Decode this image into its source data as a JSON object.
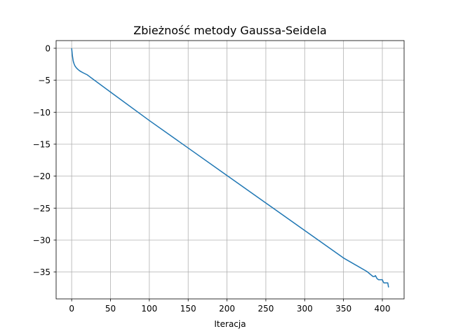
{
  "chart_data": {
    "type": "line",
    "title": "Zbieżność metody Gaussa-Seidela",
    "xlabel": "Iteracja",
    "ylabel": "",
    "xlim": [
      -20,
      428
    ],
    "ylim": [
      -39.2,
      1.2
    ],
    "xticks": [
      0,
      50,
      100,
      150,
      200,
      250,
      300,
      350,
      400
    ],
    "yticks": [
      0,
      -5,
      -10,
      -15,
      -20,
      -25,
      -30,
      -35
    ],
    "grid": true,
    "line_color": "#1f77b4",
    "series": [
      {
        "x": [
          0,
          1,
          2,
          3,
          4,
          5,
          6,
          8,
          10,
          12,
          15,
          20,
          50,
          100,
          150,
          200,
          250,
          300,
          350,
          380,
          384,
          385,
          387,
          388,
          390,
          391,
          392,
          393,
          395,
          396,
          397,
          398,
          399,
          400,
          401,
          402,
          404,
          405,
          406,
          407,
          408
        ],
        "y": [
          0,
          -1.2,
          -2.0,
          -2.4,
          -2.7,
          -2.9,
          -3.05,
          -3.3,
          -3.5,
          -3.65,
          -3.85,
          -4.15,
          -6.85,
          -11.3,
          -15.6,
          -19.9,
          -24.2,
          -28.5,
          -32.8,
          -34.9,
          -35.3,
          -35.4,
          -35.6,
          -35.7,
          -35.7,
          -35.55,
          -35.75,
          -36.0,
          -36.2,
          -36.2,
          -36.2,
          -36.2,
          -36.2,
          -36.2,
          -36.5,
          -36.7,
          -36.7,
          -36.7,
          -36.7,
          -36.7,
          -37.4
        ]
      }
    ]
  }
}
